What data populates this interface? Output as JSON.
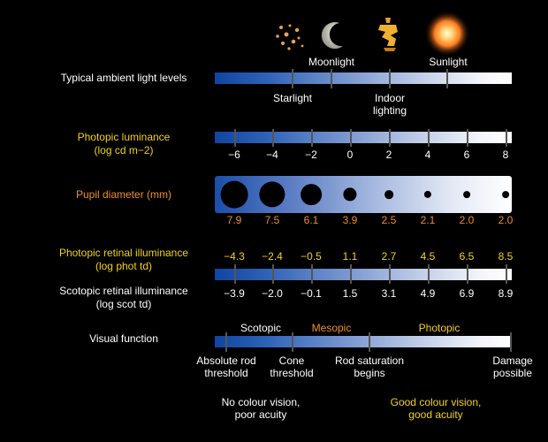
{
  "icons": [
    {
      "name": "stars-icon"
    },
    {
      "name": "moon-icon"
    },
    {
      "name": "lamp-icon"
    },
    {
      "name": "sun-icon"
    }
  ],
  "ambient": {
    "label": "Typical ambient light levels",
    "top_labels": [
      "Moonlight",
      "Sunlight"
    ],
    "bottom_labels": [
      "Starlight",
      "Indoor\nlighting"
    ]
  },
  "photopic_luminance": {
    "label_line1": "Photopic luminance",
    "label_line2": "(log cd m−2)",
    "ticks": [
      "−6",
      "−4",
      "−2",
      "0",
      "2",
      "4",
      "6",
      "8"
    ]
  },
  "pupil": {
    "label": "Pupil diameter (mm)",
    "values": [
      "7.9",
      "7.5",
      "6.1",
      "3.9",
      "2.5",
      "2.1",
      "2.0",
      "2.0"
    ],
    "diameters_mm": [
      7.9,
      7.5,
      6.1,
      3.9,
      2.5,
      2.1,
      2.0,
      2.0
    ]
  },
  "photopic_retinal": {
    "label_line1": "Photopic retinal illuminance",
    "label_line2": "(log phot td)",
    "values": [
      "−4.3",
      "−2.4",
      "−0.5",
      "1.1",
      "2.7",
      "4.5",
      "6.5",
      "8.5"
    ]
  },
  "scotopic_retinal": {
    "label_line1": "Scotopic retinal illuminance",
    "label_line2": "(log scot td)",
    "values": [
      "−3.9",
      "−2.0",
      "−0.1",
      "1.5",
      "3.1",
      "4.9",
      "6.9",
      "8.9"
    ]
  },
  "visual_function": {
    "label": "Visual function",
    "regimes": [
      "Scotopic",
      "Mesopic",
      "Photopic"
    ],
    "thresholds": [
      {
        "line1": "Absolute rod",
        "line2": "threshold"
      },
      {
        "line1": "Cone",
        "line2": "threshold"
      },
      {
        "line1": "Rod saturation",
        "line2": "begins"
      },
      {
        "line1": "Damage",
        "line2": "possible"
      }
    ],
    "notes": [
      {
        "line1": "No colour vision,",
        "line2": "poor acuity"
      },
      {
        "line1": "Good colour vision,",
        "line2": "good acuity"
      }
    ]
  },
  "colors": {
    "accent_yellow": "#f2d21c",
    "accent_orange": "#ef8e2a",
    "bar_dark": "#1144a0",
    "bar_light": "#ffffff"
  }
}
